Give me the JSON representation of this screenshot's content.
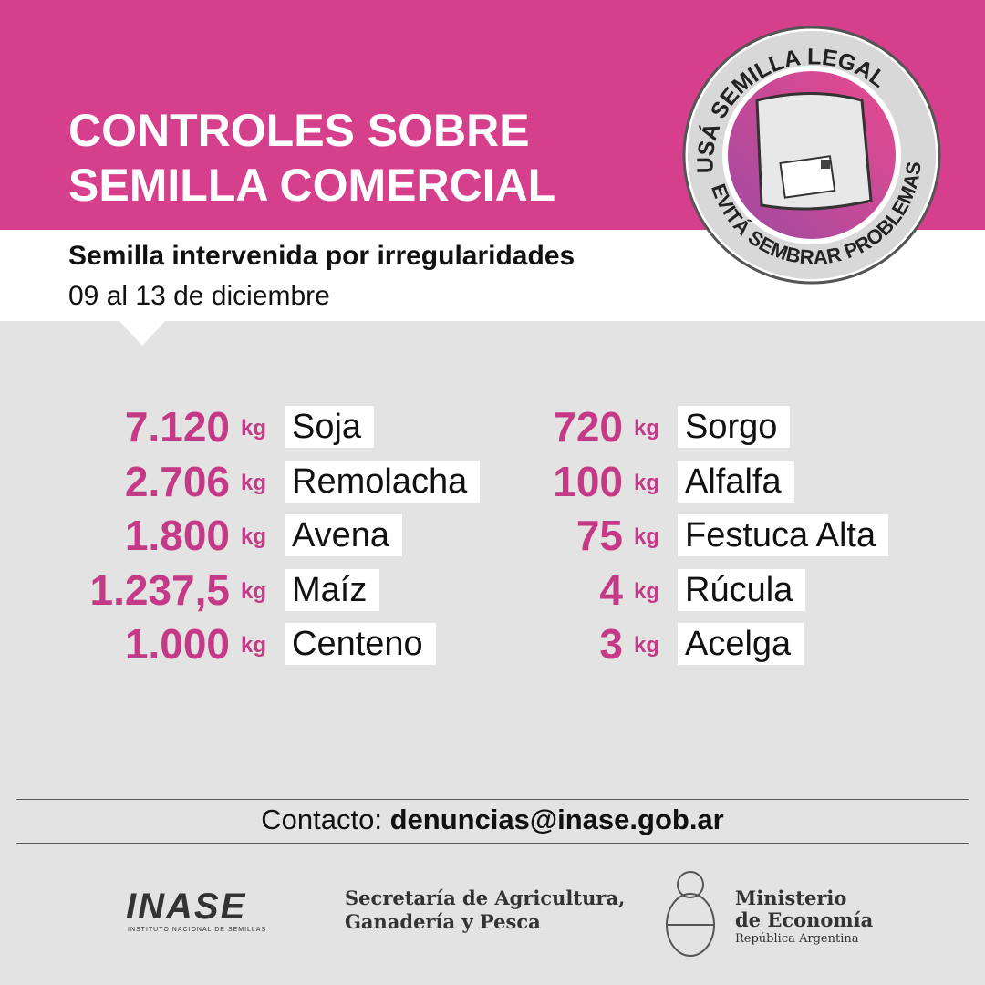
{
  "header": {
    "title_lines": [
      "CONTROLES SOBRE",
      "SEMILLA COMERCIAL"
    ],
    "subtitle": "Semilla intervenida por irregularidades",
    "date": "09 al 13 de diciembre"
  },
  "badge": {
    "top_text": "USÁ SEMILLA LEGAL",
    "bottom_text": "EVITÁ SEMBRAR PROBLEMAS"
  },
  "columns": [
    [
      {
        "amount": "7.120",
        "unit": "kg",
        "name": "Soja"
      },
      {
        "amount": "2.706",
        "unit": "kg",
        "name": "Remolacha"
      },
      {
        "amount": "1.800",
        "unit": "kg",
        "name": "Avena"
      },
      {
        "amount": "1.237,5",
        "unit": "kg",
        "name": "Maíz"
      },
      {
        "amount": "1.000",
        "unit": "kg",
        "name": "Centeno"
      }
    ],
    [
      {
        "amount": "720",
        "unit": "kg",
        "name": "Sorgo"
      },
      {
        "amount": "100",
        "unit": "kg",
        "name": "Alfalfa"
      },
      {
        "amount": "75",
        "unit": "kg",
        "name": "Festuca Alta"
      },
      {
        "amount": "4",
        "unit": "kg",
        "name": "Rúcula"
      },
      {
        "amount": "3",
        "unit": "kg",
        "name": "Acelga"
      }
    ]
  ],
  "contact": {
    "label": "Contacto:",
    "email": "denuncias@inase.gob.ar"
  },
  "footer": {
    "inase": {
      "logo": "INASE",
      "caption": "INSTITUTO NACIONAL DE SEMILLAS"
    },
    "secretaria": [
      "Secretaría de Agricultura,",
      "Ganadería y Pesca"
    ],
    "ministerio": [
      "Ministerio",
      "de Economía",
      "República Argentina"
    ]
  }
}
